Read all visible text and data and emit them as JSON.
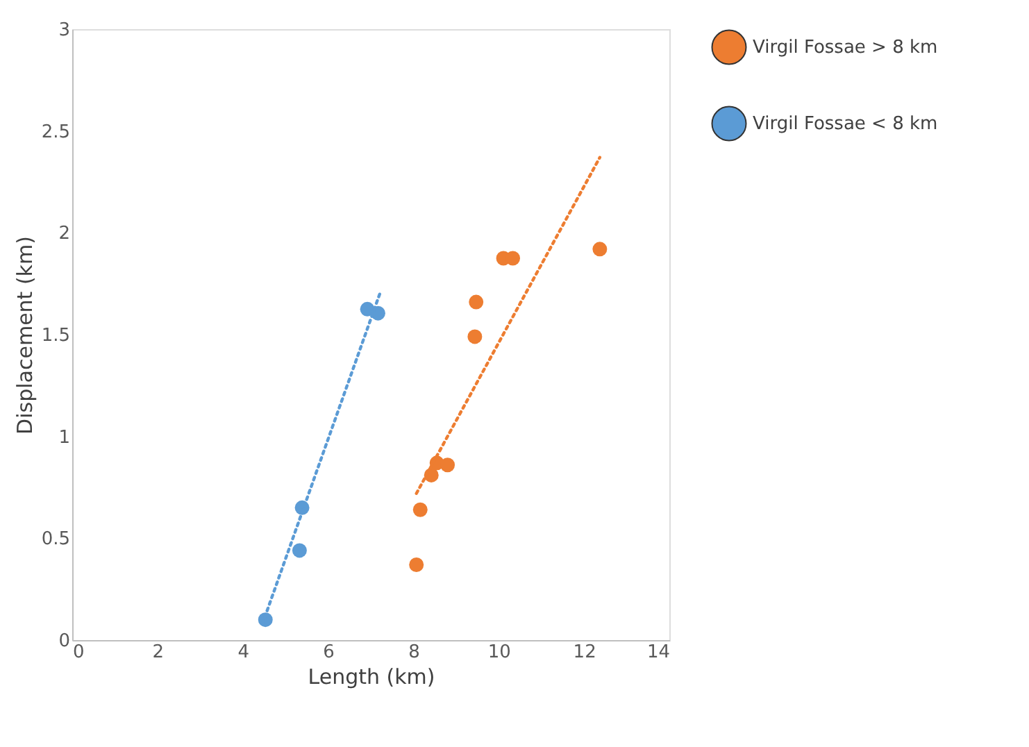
{
  "chart_data": {
    "type": "scatter",
    "xlabel": "Length (km)",
    "ylabel": "Displacement (km)",
    "xlim": [
      0,
      14
    ],
    "ylim": [
      0,
      3
    ],
    "xticks": [
      0,
      2,
      4,
      6,
      8,
      10,
      12,
      14
    ],
    "yticks": [
      0,
      0.5,
      1,
      1.5,
      2,
      2.5,
      3
    ],
    "grid": false,
    "legend": "right",
    "series": [
      {
        "name": "Virgil Fossae > 8 km",
        "color": "#ed7d31",
        "marker": "circle",
        "x": [
          8.07,
          8.16,
          8.42,
          8.55,
          8.8,
          9.44,
          9.47,
          10.11,
          10.33,
          12.37
        ],
        "values": [
          0.37,
          0.64,
          0.81,
          0.87,
          0.86,
          1.49,
          1.66,
          1.875,
          1.875,
          1.92
        ]
      },
      {
        "name": "Virgil Fossae < 8 km",
        "color": "#5b9bd5",
        "marker": "circle",
        "x": [
          4.53,
          5.33,
          5.39,
          6.92,
          7.17
        ],
        "values": [
          0.1,
          0.44,
          0.65,
          1.625,
          1.605
        ]
      },
      {
        "color": "#ed7d31",
        "type": "line",
        "marker": "none",
        "line_style": "dotted",
        "x": [
          8.07,
          12.37
        ],
        "values": [
          0.72,
          2.37
        ]
      },
      {
        "color": "#5b9bd5",
        "type": "line",
        "marker": "none",
        "line_style": "dotted",
        "x": [
          4.46,
          7.21
        ],
        "values": [
          0.08,
          1.7
        ]
      }
    ]
  }
}
